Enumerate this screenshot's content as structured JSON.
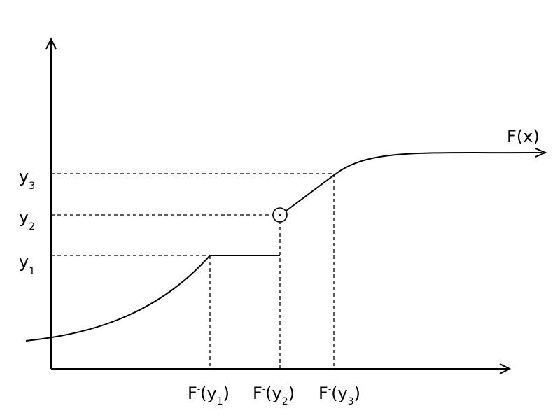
{
  "curve_label": {
    "main": "F(x)"
  },
  "y_labels": [
    {
      "base": "y",
      "sub": "3"
    },
    {
      "base": "y",
      "sub": "2"
    },
    {
      "base": "y",
      "sub": "1"
    }
  ],
  "x_labels": [
    {
      "func": "F",
      "sup": "-",
      "open": "(y",
      "sub": "1",
      "close": ")"
    },
    {
      "func": "F",
      "sup": "-",
      "open": "(y",
      "sub": "2",
      "close": ")"
    },
    {
      "func": "F",
      "sup": "-",
      "open": "(y",
      "sub": "3",
      "close": ")"
    }
  ]
}
